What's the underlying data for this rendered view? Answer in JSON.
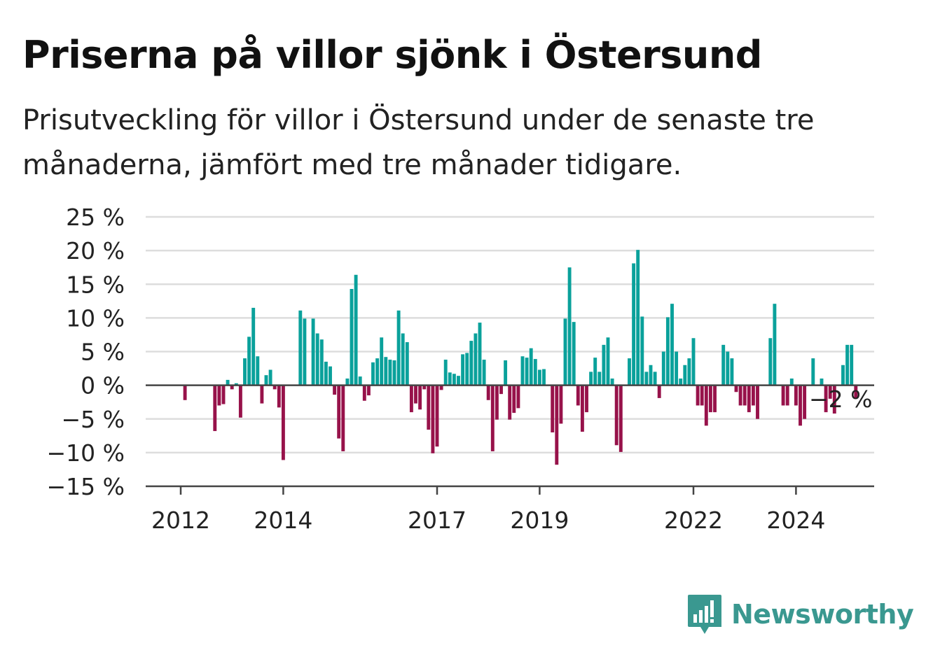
{
  "header": {
    "title": "Priserna på villor sjönk i Östersund",
    "subtitle": "Prisutveckling för villor i Östersund under de senaste tre månaderna, jämfört med tre månader tidigare."
  },
  "brand": {
    "name": "Newsworthy",
    "icon": "newsworthy-logo-icon",
    "color": "#3a9890"
  },
  "colors": {
    "positive": "#0aa19b",
    "negative": "#97124a",
    "grid": "#dddddd",
    "axis": "#444444"
  },
  "chart_data": {
    "type": "bar",
    "unit": "%",
    "ylim": [
      -15,
      25
    ],
    "y_ticks": [
      25,
      20,
      15,
      10,
      5,
      0,
      -5,
      -10,
      -15
    ],
    "y_tick_labels": [
      "25 %",
      "20 %",
      "15 %",
      "10 %",
      "5 %",
      "0 %",
      "−5 %",
      "−10 %",
      "−15 %"
    ],
    "x_ticks": [
      {
        "label": "2012",
        "index": 0
      },
      {
        "label": "2014",
        "index": 24
      },
      {
        "label": "2017",
        "index": 60
      },
      {
        "label": "2019",
        "index": 84
      },
      {
        "label": "2022",
        "index": 120
      },
      {
        "label": "2024",
        "index": 144
      }
    ],
    "grid": true,
    "start_label": "2012",
    "values": [
      0,
      -2.2,
      0,
      0,
      0,
      0,
      0,
      0,
      -6.8,
      -3,
      -2.8,
      0.8,
      -0.6,
      0.3,
      -4.8,
      4,
      7.2,
      11.5,
      4.3,
      -2.7,
      1.5,
      2.3,
      -0.6,
      -3.3,
      -11.1,
      0,
      0,
      0,
      11.1,
      9.9,
      0,
      9.9,
      7.7,
      6.8,
      3.5,
      2.8,
      -1.4,
      -7.9,
      -9.8,
      1,
      14.3,
      16.4,
      1.3,
      -2.3,
      -1.5,
      3.4,
      4,
      7.1,
      4.2,
      3.8,
      3.7,
      11.1,
      7.7,
      6.4,
      -4,
      -2.7,
      -3.6,
      -0.6,
      -6.6,
      -10.1,
      -9.1,
      -0.7,
      3.8,
      1.9,
      1.7,
      1.4,
      4.6,
      4.8,
      6.6,
      7.7,
      9.3,
      3.8,
      -2.2,
      -9.8,
      -5.1,
      -1.3,
      3.7,
      -5.1,
      -4.1,
      -3.4,
      4.3,
      4.1,
      5.5,
      3.9,
      2.3,
      2.4,
      0,
      -7,
      -11.8,
      -5.7,
      9.9,
      17.5,
      9.4,
      -3,
      -6.9,
      -4,
      2,
      4.1,
      2,
      6,
      7.1,
      1,
      -8.9,
      -9.9,
      0,
      4,
      18.1,
      20.1,
      10.2,
      2,
      3,
      2,
      -1.9,
      5,
      10.1,
      12.1,
      5,
      1,
      3,
      4,
      7,
      -3,
      -3,
      -6,
      -4,
      -4,
      0,
      6,
      5,
      4,
      -1,
      -3,
      -3,
      -4,
      -3,
      -5,
      0,
      0,
      7,
      12.1,
      0,
      -3,
      -3,
      1,
      -3,
      -6,
      -5,
      0,
      4,
      0,
      1,
      -4,
      -2,
      -4.2,
      0,
      3,
      6,
      6,
      -2
    ],
    "last_value_label": "−2 %",
    "last_value": -2
  }
}
